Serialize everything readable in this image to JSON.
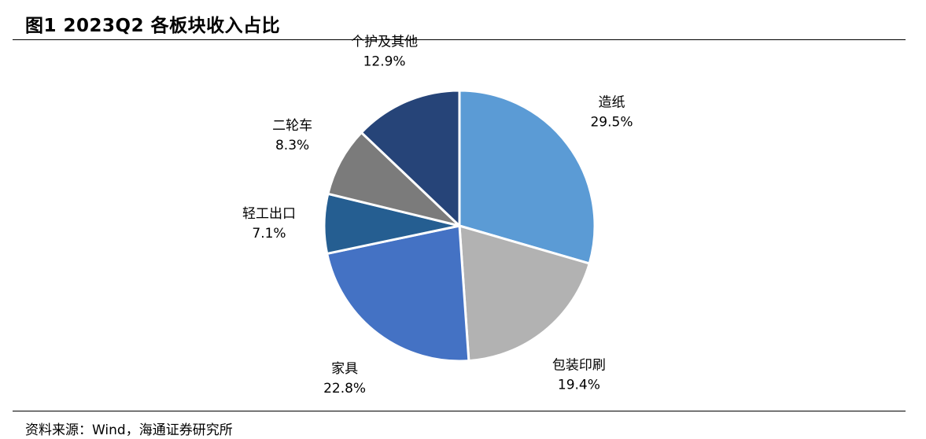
{
  "header": {
    "title": "图1  2023Q2 各板块收入占比"
  },
  "footer": {
    "source": "资料来源：Wind，海通证券研究所"
  },
  "chart_data": {
    "type": "pie",
    "start_angle_deg": 0,
    "direction": "clockwise",
    "slices": [
      {
        "name": "造纸",
        "value": 29.5,
        "label": "29.5%",
        "color": "#5b9bd5"
      },
      {
        "name": "包装印刷",
        "value": 19.4,
        "label": "19.4%",
        "color": "#b2b2b2"
      },
      {
        "name": "家具",
        "value": 22.8,
        "label": "22.8%",
        "color": "#4472c4"
      },
      {
        "name": "轻工出口",
        "value": 7.1,
        "label": "7.1%",
        "color": "#255e91"
      },
      {
        "name": "二轮车",
        "value": 8.3,
        "label": "8.3%",
        "color": "#7b7b7b"
      },
      {
        "name": "个护及其他",
        "value": 12.9,
        "label": "12.9%",
        "color": "#264478"
      }
    ]
  }
}
